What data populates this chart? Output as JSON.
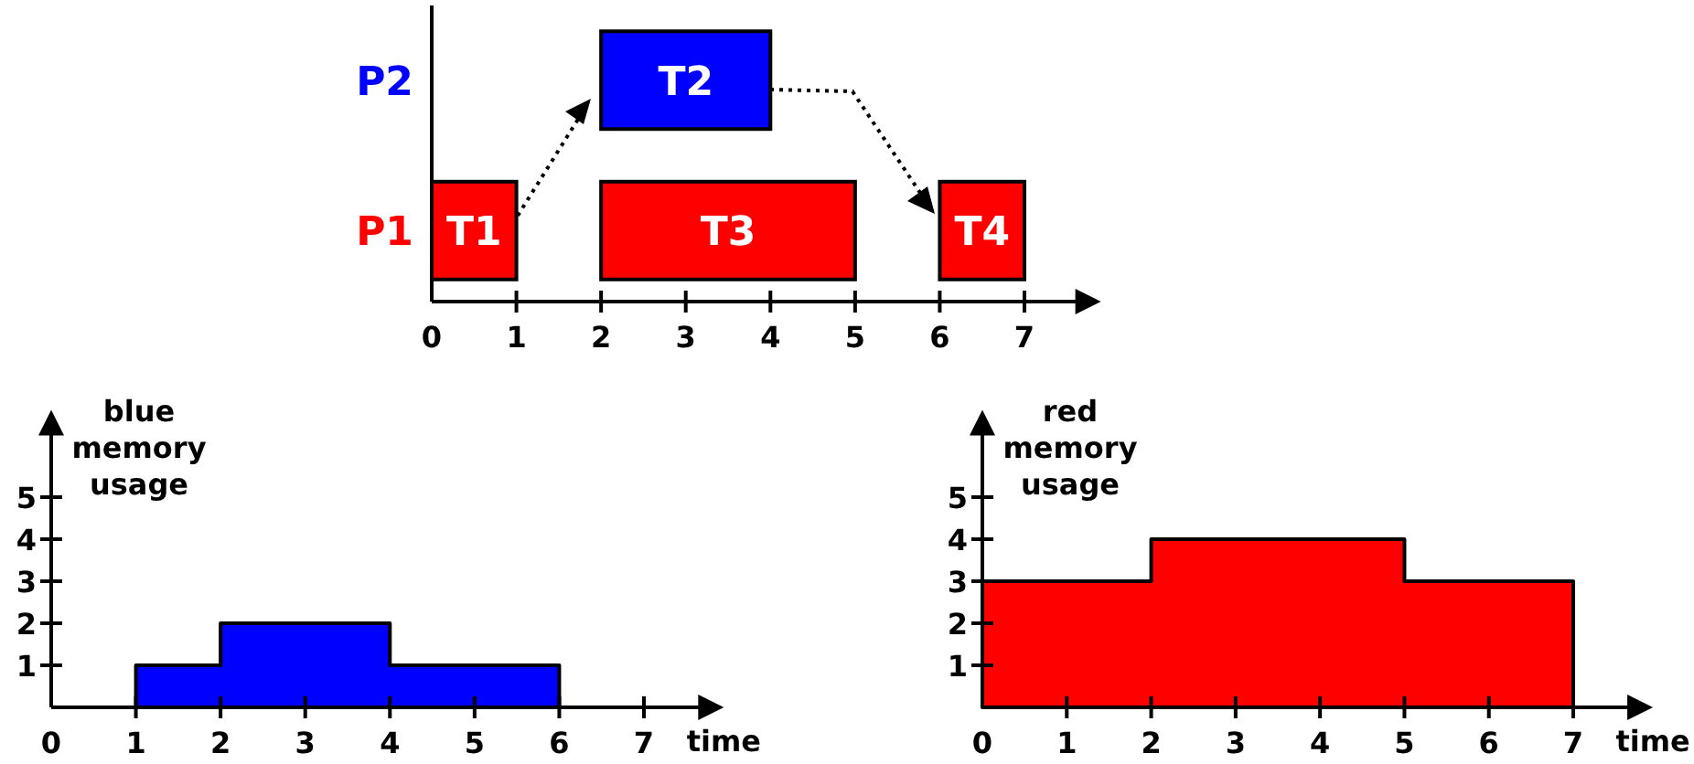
{
  "chart_data": [
    {
      "type": "bar",
      "orientation": "horizontal",
      "categories": [
        "P2",
        "P1"
      ],
      "xlim": [
        0,
        7.86
      ],
      "xticks": [
        0,
        1,
        2,
        3,
        4,
        5,
        6,
        7
      ],
      "series": [
        {
          "name": "T1",
          "color": "#ff0000",
          "values": [
            null,
            1
          ],
          "base": [
            null,
            0
          ]
        },
        {
          "name": "T2",
          "color": "#0000ff",
          "values": [
            2,
            null
          ],
          "base": [
            2,
            null
          ]
        },
        {
          "name": "T3",
          "color": "#ff0000",
          "values": [
            null,
            3
          ],
          "base": [
            null,
            2
          ]
        },
        {
          "name": "T4",
          "color": "#ff0000",
          "values": [
            null,
            1
          ],
          "base": [
            null,
            6
          ]
        }
      ]
    },
    {
      "type": "area",
      "ylabel": "blue memory usage",
      "xlabel": "time",
      "xlim": [
        0,
        7.9
      ],
      "ylim": [
        0,
        6.9
      ],
      "xticks": [
        0,
        1,
        2,
        3,
        4,
        5,
        6,
        7
      ],
      "yticks": [
        1,
        2,
        3,
        4,
        5
      ],
      "series": [
        {
          "color": "#0000ff",
          "x": [
            1,
            1,
            2,
            2,
            4,
            4,
            6,
            6
          ],
          "values": [
            0,
            1,
            1,
            2,
            2,
            1,
            1,
            0
          ]
        }
      ]
    },
    {
      "type": "area",
      "ylabel": "red memory usage",
      "xlabel": "time",
      "xlim": [
        0,
        7.9
      ],
      "ylim": [
        0,
        6.9
      ],
      "xticks": [
        0,
        1,
        2,
        3,
        4,
        5,
        6,
        7
      ],
      "yticks": [
        1,
        2,
        3,
        4,
        5
      ],
      "series": [
        {
          "color": "#ff0000",
          "x": [
            0,
            0,
            2,
            2,
            5,
            5,
            7,
            7
          ],
          "values": [
            0,
            3,
            3,
            4,
            4,
            3,
            3,
            0
          ]
        }
      ]
    }
  ]
}
